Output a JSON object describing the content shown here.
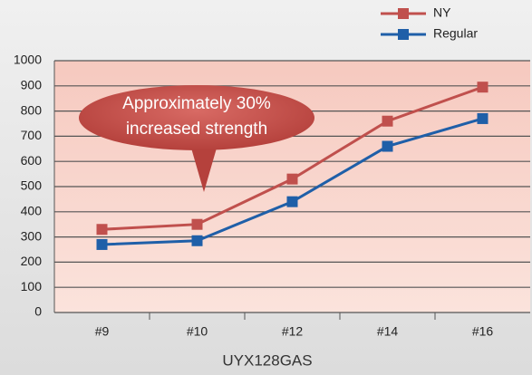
{
  "chart_data": {
    "type": "line",
    "categories": [
      "#9",
      "#10",
      "#12",
      "#14",
      "#16"
    ],
    "series": [
      {
        "name": "NY",
        "color": "#c0504d",
        "values": [
          330,
          350,
          530,
          760,
          895
        ]
      },
      {
        "name": "Regular",
        "color": "#1f5fa8",
        "values": [
          270,
          285,
          440,
          660,
          770
        ]
      }
    ],
    "ylim": [
      0,
      1000
    ],
    "yticks": [
      0,
      100,
      200,
      300,
      400,
      500,
      600,
      700,
      800,
      900,
      1000
    ],
    "grid": true,
    "legend": "top-right",
    "xlabel": "UYX128GAS",
    "annotation": [
      "Approximately 30%",
      "increased strength"
    ]
  }
}
